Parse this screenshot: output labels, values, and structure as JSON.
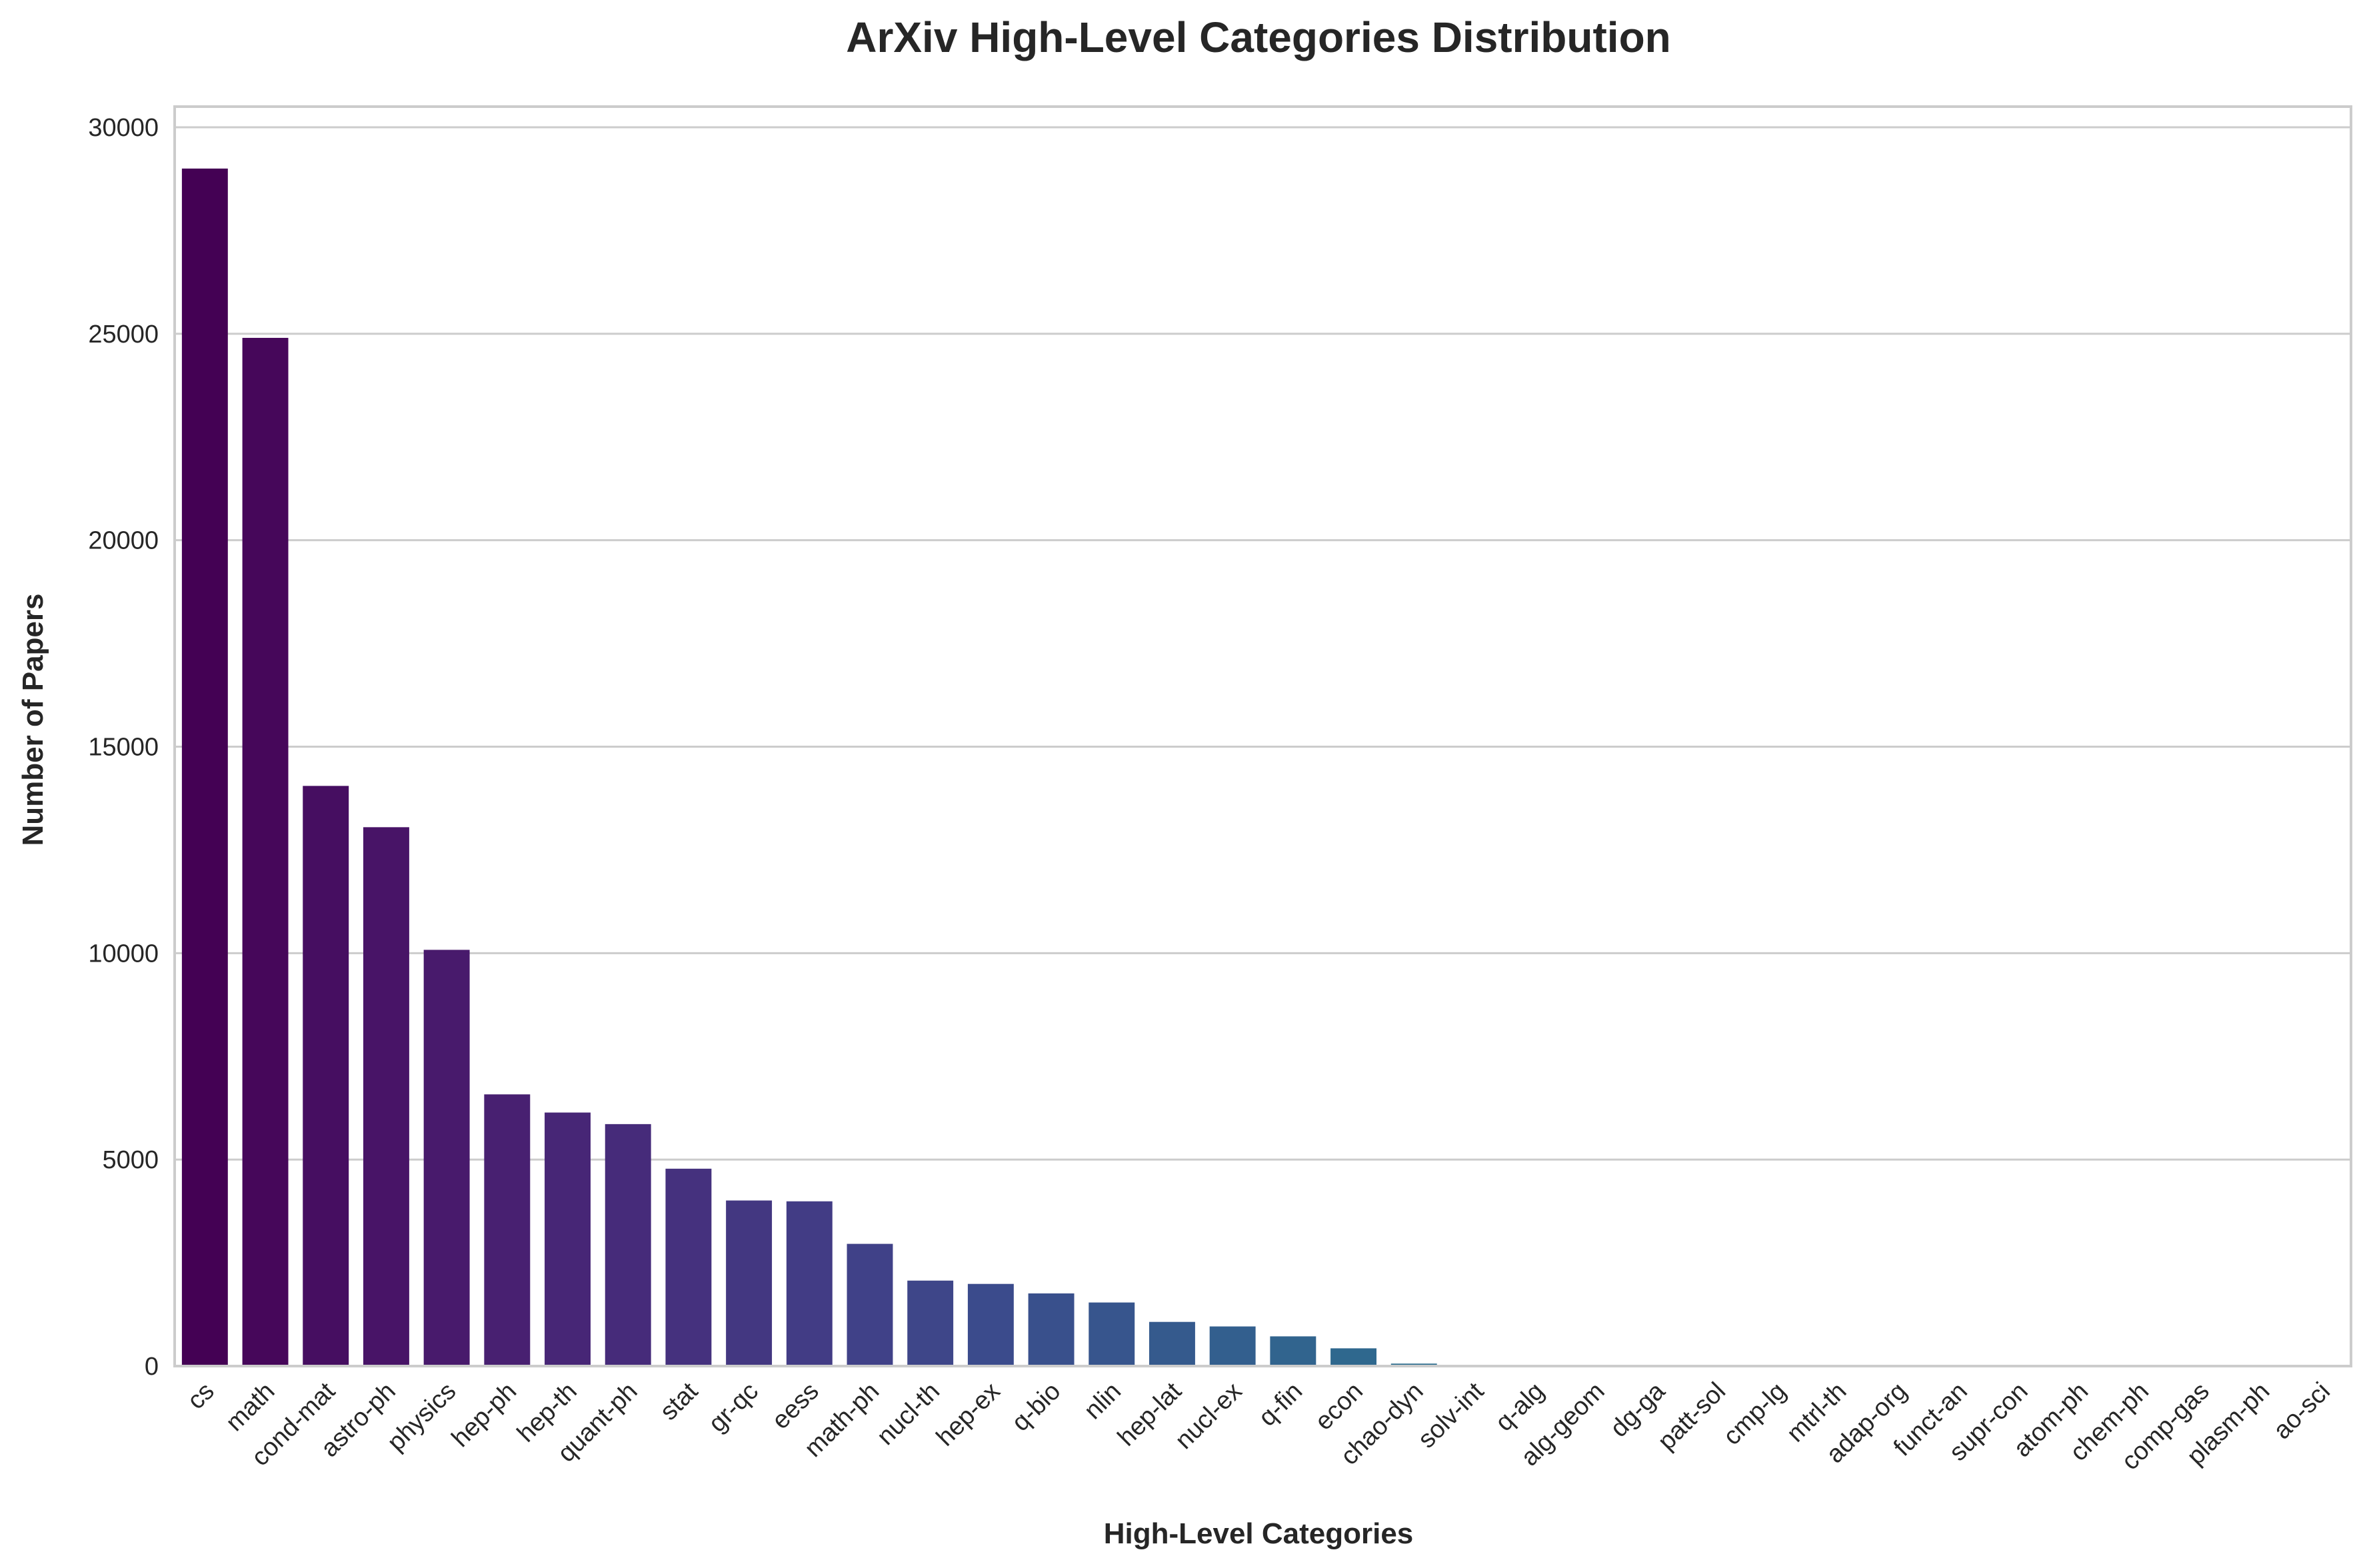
{
  "chart_data": {
    "type": "bar",
    "title": "ArXiv High-Level Categories Distribution",
    "xlabel": "High-Level Categories",
    "ylabel": "Number of Papers",
    "ylim": [
      0,
      30500
    ],
    "yticks": [
      0,
      5000,
      10000,
      15000,
      20000,
      25000,
      30000
    ],
    "grid": "horizontal",
    "legend": "none",
    "colormap": "viridis",
    "categories": [
      "cs",
      "math",
      "cond-mat",
      "astro-ph",
      "physics",
      "hep-ph",
      "hep-th",
      "quant-ph",
      "stat",
      "gr-qc",
      "eess",
      "math-ph",
      "nucl-th",
      "hep-ex",
      "q-bio",
      "nlin",
      "hep-lat",
      "nucl-ex",
      "q-fin",
      "econ",
      "chao-dyn",
      "solv-int",
      "q-alg",
      "alg-geom",
      "dg-ga",
      "patt-sol",
      "cmp-lg",
      "mtrl-th",
      "adap-org",
      "funct-an",
      "supr-con",
      "atom-ph",
      "chem-ph",
      "comp-gas",
      "plasm-ph",
      "ao-sci"
    ],
    "values": [
      29000,
      24900,
      14050,
      13050,
      10080,
      6580,
      6140,
      5860,
      4780,
      4010,
      3990,
      2960,
      2070,
      1990,
      1760,
      1540,
      1070,
      960,
      720,
      430,
      60,
      30,
      20,
      15,
      12,
      10,
      8,
      6,
      5,
      4,
      3,
      3,
      2,
      2,
      1,
      1
    ],
    "colors": [
      "#440154",
      "#46075a",
      "#460e61",
      "#481467",
      "#481a6c",
      "#482071",
      "#472676",
      "#462b7a",
      "#45317e",
      "#433781",
      "#423c85",
      "#404188",
      "#3e4689",
      "#3b4b8c",
      "#39508c",
      "#37558d",
      "#355a8d",
      "#335f8e",
      "#31648e",
      "#2f688e",
      "#2d6e8e",
      "#2b728e",
      "#29768e",
      "#277b8e",
      "#26808e",
      "#24848d",
      "#23898e",
      "#218d8c",
      "#1f928c",
      "#1f968b",
      "#1f9a8a",
      "#20a086",
      "#23a484",
      "#26a881",
      "#2bac7e",
      "#31b07b"
    ]
  }
}
